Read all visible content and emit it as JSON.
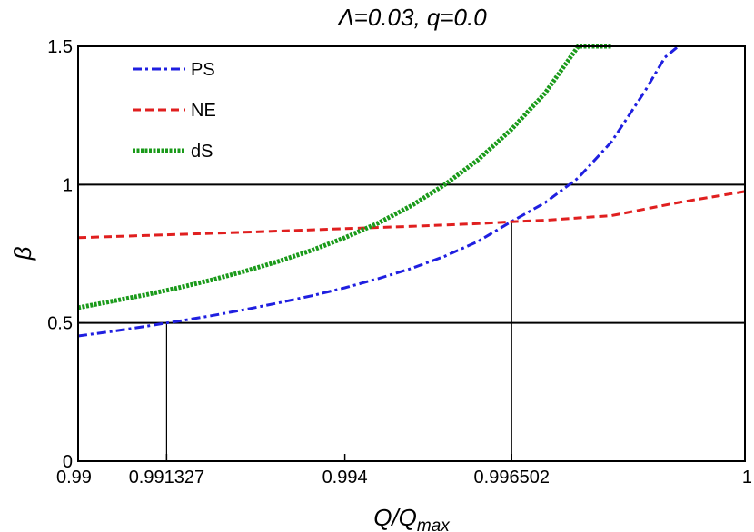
{
  "chart_data": {
    "type": "line",
    "title": "Λ=0.03, q=0.0",
    "xlabel": "Q/Q",
    "xlabel_sub": "max",
    "ylabel": "β",
    "xlim": [
      0.99,
      1.0
    ],
    "ylim": [
      0,
      1.5
    ],
    "xticks": [
      {
        "value": 0.99,
        "label": "0.99"
      },
      {
        "value": 0.991327,
        "label": "0.991327"
      },
      {
        "value": 0.994,
        "label": "0.994"
      },
      {
        "value": 0.996502,
        "label": "0.996502"
      },
      {
        "value": 1.0,
        "label": "1"
      }
    ],
    "yticks": [
      {
        "value": 0,
        "label": "0"
      },
      {
        "value": 0.5,
        "label": "0.5"
      },
      {
        "value": 1.0,
        "label": "1"
      },
      {
        "value": 1.5,
        "label": "1.5"
      }
    ],
    "hlines": [
      0.5,
      1.0
    ],
    "vlines": [
      {
        "x": 0.991327,
        "y_top": 0.5
      },
      {
        "x": 0.996502,
        "y_top": 0.8666
      }
    ],
    "grid": false,
    "legend_position": "top-left",
    "series": [
      {
        "name": "PS",
        "color": "#1f1fe0",
        "style": "dashdot",
        "x": [
          0.99,
          0.9905,
          0.991,
          0.991327,
          0.9915,
          0.992,
          0.9925,
          0.993,
          0.9935,
          0.994,
          0.9945,
          0.995,
          0.9955,
          0.996,
          0.996502,
          0.997,
          0.9975,
          0.998,
          0.9985,
          0.9988,
          0.999
        ],
        "y": [
          0.453,
          0.469,
          0.487,
          0.5,
          0.506,
          0.526,
          0.548,
          0.572,
          0.598,
          0.627,
          0.66,
          0.697,
          0.741,
          0.795,
          0.867,
          0.934,
          1.024,
          1.155,
          1.338,
          1.46,
          1.5
        ]
      },
      {
        "name": "NE",
        "color": "#e01f1f",
        "style": "dashed",
        "x": [
          0.99,
          0.991,
          0.992,
          0.993,
          0.994,
          0.995,
          0.996,
          0.996502,
          0.997,
          0.998,
          0.999,
          1.0
        ],
        "y": [
          0.808,
          0.816,
          0.824,
          0.832,
          0.841,
          0.849,
          0.859,
          0.866,
          0.871,
          0.888,
          0.935,
          0.975
        ]
      },
      {
        "name": "dS",
        "color": "#1a9a1a",
        "style": "dotted",
        "x": [
          0.99,
          0.9905,
          0.991,
          0.9915,
          0.992,
          0.9925,
          0.993,
          0.9935,
          0.994,
          0.9945,
          0.995,
          0.9955,
          0.996,
          0.9965,
          0.997,
          0.9975,
          0.998
        ],
        "y": [
          0.555,
          0.578,
          0.601,
          0.627,
          0.655,
          0.687,
          0.722,
          0.762,
          0.808,
          0.861,
          0.924,
          1.0,
          1.09,
          1.2,
          1.33,
          1.5,
          1.5
        ]
      }
    ]
  }
}
